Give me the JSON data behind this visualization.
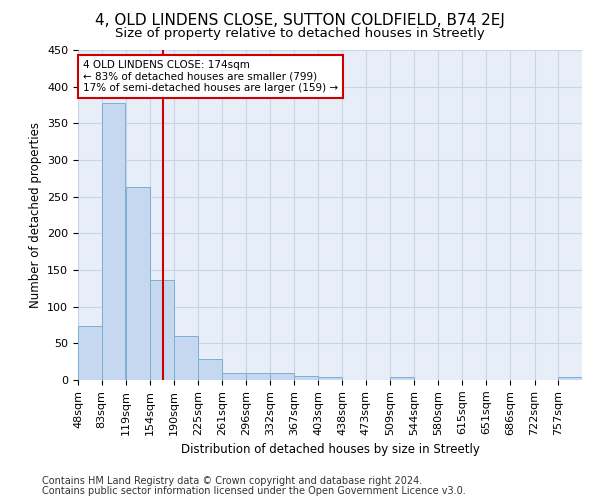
{
  "title": "4, OLD LINDENS CLOSE, SUTTON COLDFIELD, B74 2EJ",
  "subtitle": "Size of property relative to detached houses in Streetly",
  "xlabel": "Distribution of detached houses by size in Streetly",
  "ylabel": "Number of detached properties",
  "footnote1": "Contains HM Land Registry data © Crown copyright and database right 2024.",
  "footnote2": "Contains public sector information licensed under the Open Government Licence v3.0.",
  "annotation_line1": "4 OLD LINDENS CLOSE: 174sqm",
  "annotation_line2": "← 83% of detached houses are smaller (799)",
  "annotation_line3": "17% of semi-detached houses are larger (159) →",
  "property_size": 174,
  "bar_labels": [
    "48sqm",
    "83sqm",
    "119sqm",
    "154sqm",
    "190sqm",
    "225sqm",
    "261sqm",
    "296sqm",
    "332sqm",
    "367sqm",
    "403sqm",
    "438sqm",
    "473sqm",
    "509sqm",
    "544sqm",
    "580sqm",
    "615sqm",
    "651sqm",
    "686sqm",
    "722sqm",
    "757sqm"
  ],
  "bar_edges": [
    48,
    83,
    119,
    154,
    190,
    225,
    261,
    296,
    332,
    367,
    403,
    438,
    473,
    509,
    544,
    580,
    615,
    651,
    686,
    722,
    757
  ],
  "bar_values": [
    73,
    378,
    263,
    137,
    60,
    29,
    10,
    9,
    10,
    5,
    4,
    0,
    0,
    4,
    0,
    0,
    0,
    0,
    0,
    0,
    4
  ],
  "bar_color": "#c5d8f0",
  "bar_edge_color": "#7aafd4",
  "vline_x": 174,
  "vline_color": "#cc0000",
  "annotation_box_color": "#cc0000",
  "grid_color": "#c8d4e8",
  "bg_color": "#e8eef8",
  "ylim": [
    0,
    450
  ],
  "yticks": [
    0,
    50,
    100,
    150,
    200,
    250,
    300,
    350,
    400,
    450
  ],
  "title_fontsize": 11,
  "subtitle_fontsize": 9.5,
  "axis_label_fontsize": 8.5,
  "tick_fontsize": 8,
  "annotation_fontsize": 7.5,
  "footnote_fontsize": 7
}
